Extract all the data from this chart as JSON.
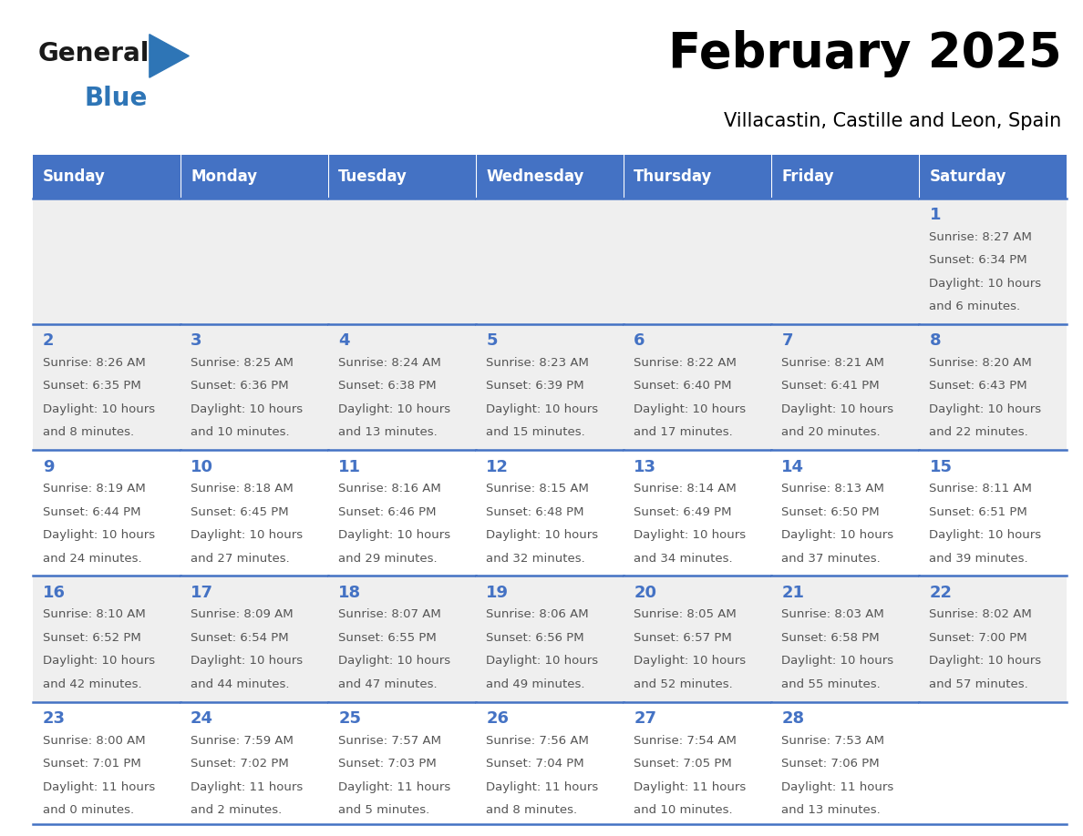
{
  "title": "February 2025",
  "subtitle": "Villacastin, Castille and Leon, Spain",
  "header_bg": "#4472C4",
  "header_text_color": "#FFFFFF",
  "weekdays": [
    "Sunday",
    "Monday",
    "Tuesday",
    "Wednesday",
    "Thursday",
    "Friday",
    "Saturday"
  ],
  "cell_bg_light": "#EFEFEF",
  "cell_bg_white": "#FFFFFF",
  "cell_border_color": "#4472C4",
  "day_number_color": "#4472C4",
  "info_text_color": "#555555",
  "calendar": [
    [
      null,
      null,
      null,
      null,
      null,
      null,
      {
        "day": 1,
        "sunrise": "8:27 AM",
        "sunset": "6:34 PM",
        "daylight_line1": "Daylight: 10 hours",
        "daylight_line2": "and 6 minutes."
      }
    ],
    [
      {
        "day": 2,
        "sunrise": "8:26 AM",
        "sunset": "6:35 PM",
        "daylight_line1": "Daylight: 10 hours",
        "daylight_line2": "and 8 minutes."
      },
      {
        "day": 3,
        "sunrise": "8:25 AM",
        "sunset": "6:36 PM",
        "daylight_line1": "Daylight: 10 hours",
        "daylight_line2": "and 10 minutes."
      },
      {
        "day": 4,
        "sunrise": "8:24 AM",
        "sunset": "6:38 PM",
        "daylight_line1": "Daylight: 10 hours",
        "daylight_line2": "and 13 minutes."
      },
      {
        "day": 5,
        "sunrise": "8:23 AM",
        "sunset": "6:39 PM",
        "daylight_line1": "Daylight: 10 hours",
        "daylight_line2": "and 15 minutes."
      },
      {
        "day": 6,
        "sunrise": "8:22 AM",
        "sunset": "6:40 PM",
        "daylight_line1": "Daylight: 10 hours",
        "daylight_line2": "and 17 minutes."
      },
      {
        "day": 7,
        "sunrise": "8:21 AM",
        "sunset": "6:41 PM",
        "daylight_line1": "Daylight: 10 hours",
        "daylight_line2": "and 20 minutes."
      },
      {
        "day": 8,
        "sunrise": "8:20 AM",
        "sunset": "6:43 PM",
        "daylight_line1": "Daylight: 10 hours",
        "daylight_line2": "and 22 minutes."
      }
    ],
    [
      {
        "day": 9,
        "sunrise": "8:19 AM",
        "sunset": "6:44 PM",
        "daylight_line1": "Daylight: 10 hours",
        "daylight_line2": "and 24 minutes."
      },
      {
        "day": 10,
        "sunrise": "8:18 AM",
        "sunset": "6:45 PM",
        "daylight_line1": "Daylight: 10 hours",
        "daylight_line2": "and 27 minutes."
      },
      {
        "day": 11,
        "sunrise": "8:16 AM",
        "sunset": "6:46 PM",
        "daylight_line1": "Daylight: 10 hours",
        "daylight_line2": "and 29 minutes."
      },
      {
        "day": 12,
        "sunrise": "8:15 AM",
        "sunset": "6:48 PM",
        "daylight_line1": "Daylight: 10 hours",
        "daylight_line2": "and 32 minutes."
      },
      {
        "day": 13,
        "sunrise": "8:14 AM",
        "sunset": "6:49 PM",
        "daylight_line1": "Daylight: 10 hours",
        "daylight_line2": "and 34 minutes."
      },
      {
        "day": 14,
        "sunrise": "8:13 AM",
        "sunset": "6:50 PM",
        "daylight_line1": "Daylight: 10 hours",
        "daylight_line2": "and 37 minutes."
      },
      {
        "day": 15,
        "sunrise": "8:11 AM",
        "sunset": "6:51 PM",
        "daylight_line1": "Daylight: 10 hours",
        "daylight_line2": "and 39 minutes."
      }
    ],
    [
      {
        "day": 16,
        "sunrise": "8:10 AM",
        "sunset": "6:52 PM",
        "daylight_line1": "Daylight: 10 hours",
        "daylight_line2": "and 42 minutes."
      },
      {
        "day": 17,
        "sunrise": "8:09 AM",
        "sunset": "6:54 PM",
        "daylight_line1": "Daylight: 10 hours",
        "daylight_line2": "and 44 minutes."
      },
      {
        "day": 18,
        "sunrise": "8:07 AM",
        "sunset": "6:55 PM",
        "daylight_line1": "Daylight: 10 hours",
        "daylight_line2": "and 47 minutes."
      },
      {
        "day": 19,
        "sunrise": "8:06 AM",
        "sunset": "6:56 PM",
        "daylight_line1": "Daylight: 10 hours",
        "daylight_line2": "and 49 minutes."
      },
      {
        "day": 20,
        "sunrise": "8:05 AM",
        "sunset": "6:57 PM",
        "daylight_line1": "Daylight: 10 hours",
        "daylight_line2": "and 52 minutes."
      },
      {
        "day": 21,
        "sunrise": "8:03 AM",
        "sunset": "6:58 PM",
        "daylight_line1": "Daylight: 10 hours",
        "daylight_line2": "and 55 minutes."
      },
      {
        "day": 22,
        "sunrise": "8:02 AM",
        "sunset": "7:00 PM",
        "daylight_line1": "Daylight: 10 hours",
        "daylight_line2": "and 57 minutes."
      }
    ],
    [
      {
        "day": 23,
        "sunrise": "8:00 AM",
        "sunset": "7:01 PM",
        "daylight_line1": "Daylight: 11 hours",
        "daylight_line2": "and 0 minutes."
      },
      {
        "day": 24,
        "sunrise": "7:59 AM",
        "sunset": "7:02 PM",
        "daylight_line1": "Daylight: 11 hours",
        "daylight_line2": "and 2 minutes."
      },
      {
        "day": 25,
        "sunrise": "7:57 AM",
        "sunset": "7:03 PM",
        "daylight_line1": "Daylight: 11 hours",
        "daylight_line2": "and 5 minutes."
      },
      {
        "day": 26,
        "sunrise": "7:56 AM",
        "sunset": "7:04 PM",
        "daylight_line1": "Daylight: 11 hours",
        "daylight_line2": "and 8 minutes."
      },
      {
        "day": 27,
        "sunrise": "7:54 AM",
        "sunset": "7:05 PM",
        "daylight_line1": "Daylight: 11 hours",
        "daylight_line2": "and 10 minutes."
      },
      {
        "day": 28,
        "sunrise": "7:53 AM",
        "sunset": "7:06 PM",
        "daylight_line1": "Daylight: 11 hours",
        "daylight_line2": "and 13 minutes."
      },
      null
    ]
  ],
  "logo_general_color": "#1a1a1a",
  "logo_blue_color": "#2E75B6",
  "logo_triangle_color": "#2E75B6",
  "row_bg": [
    "#EFEFEF",
    "#EFEFEF",
    "#FFFFFF",
    "#EFEFEF",
    "#FFFFFF"
  ]
}
